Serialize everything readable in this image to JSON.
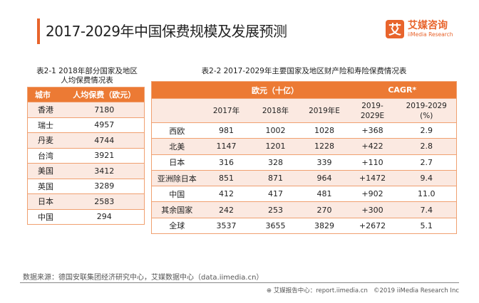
{
  "header": {
    "title": "2017-2029年中国保费规模及发展预测",
    "logo_mark": "艾",
    "logo_cn": "艾媒咨询",
    "logo_en": "iiMedia Research"
  },
  "table1": {
    "caption_line1": "表2-1 2018年部分国家及地区",
    "caption_line2": "人均保费情况表",
    "headers": [
      "城市",
      "人均保费（欧元）"
    ],
    "rows": [
      [
        "香港",
        "7180"
      ],
      [
        "瑞士",
        "4957"
      ],
      [
        "丹麦",
        "4744"
      ],
      [
        "台湾",
        "3921"
      ],
      [
        "美国",
        "3412"
      ],
      [
        "英国",
        "3289"
      ],
      [
        "日本",
        "2583"
      ],
      [
        "中国",
        "294"
      ]
    ]
  },
  "table2": {
    "caption": "表2-2 2017-2029年主要国家及地区财产险和寿险保费情况表",
    "group_headers": [
      "欧元（十亿）",
      "CAGR*"
    ],
    "sub_headers": [
      "2017年",
      "2018年",
      "2019年E",
      "2019-\n2029E",
      "2019-2029\n(%)"
    ],
    "rows": [
      [
        "西欧",
        "981",
        "1002",
        "1028",
        "+368",
        "2.9"
      ],
      [
        "北美",
        "1147",
        "1201",
        "1228",
        "+422",
        "2.8"
      ],
      [
        "日本",
        "316",
        "328",
        "339",
        "+110",
        "2.7"
      ],
      [
        "亚洲除日本",
        "851",
        "871",
        "964",
        "+1472",
        "9.4"
      ],
      [
        "中国",
        "412",
        "417",
        "481",
        "+902",
        "11.0"
      ],
      [
        "其余国家",
        "242",
        "253",
        "270",
        "+300",
        "7.4"
      ],
      [
        "全球",
        "3537",
        "3655",
        "3829",
        "+2672",
        "5.1"
      ]
    ]
  },
  "footer": {
    "source": "数据来源：德国安联集团经济研究中心，艾媒数据中心（data.iimedia.cn）",
    "report": "艾媒报告中心：report.iimedia.cn",
    "copyright": "©2019  iiMedia Research  Inc"
  },
  "colors": {
    "accent": "#ec7a34",
    "row_tint": "#fbe9e1"
  }
}
